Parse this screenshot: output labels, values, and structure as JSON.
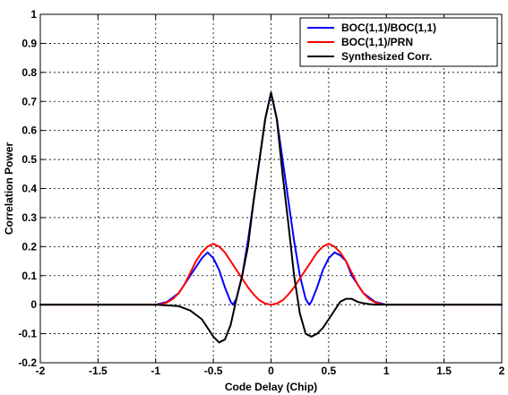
{
  "chart_data": {
    "type": "line",
    "title": "",
    "xlabel": "Code Delay (Chip)",
    "ylabel": "Correlation Power",
    "xlim": [
      -2,
      2
    ],
    "ylim": [
      -0.2,
      1
    ],
    "xticks": [
      -2,
      -1.5,
      -1,
      -0.5,
      0,
      0.5,
      1,
      1.5,
      2
    ],
    "xtick_labels": [
      "-2",
      "-1.5",
      "-1",
      "-0.5",
      "0",
      "0.5",
      "1",
      "1.5",
      "2"
    ],
    "yticks": [
      -0.2,
      -0.1,
      0,
      0.1,
      0.2,
      0.3,
      0.4,
      0.5,
      0.6,
      0.7,
      0.8,
      0.9,
      1
    ],
    "ytick_labels": [
      "-0.2",
      "-0.1",
      "0",
      "0.1",
      "0.2",
      "0.3",
      "0.4",
      "0.5",
      "0.6",
      "0.7",
      "0.8",
      "0.9",
      "1"
    ],
    "grid": true,
    "legend_position": "top-right",
    "series": [
      {
        "name": "BOC(1,1)/BOC(1,1)",
        "color": "#0000ff",
        "x": [
          -2,
          -1,
          -0.9,
          -0.8,
          -0.7,
          -0.6,
          -0.55,
          -0.5,
          -0.45,
          -0.4,
          -0.35,
          -0.33,
          -0.3,
          -0.25,
          -0.2,
          -0.15,
          -0.1,
          -0.05,
          0,
          0.05,
          0.1,
          0.15,
          0.2,
          0.25,
          0.3,
          0.33,
          0.35,
          0.4,
          0.45,
          0.5,
          0.55,
          0.6,
          0.65,
          0.7,
          0.8,
          0.9,
          1,
          2
        ],
        "y": [
          0,
          0,
          0.01,
          0.04,
          0.1,
          0.16,
          0.18,
          0.16,
          0.12,
          0.06,
          0.01,
          0,
          0.02,
          0.1,
          0.22,
          0.36,
          0.5,
          0.64,
          0.73,
          0.64,
          0.5,
          0.36,
          0.22,
          0.1,
          0.02,
          0,
          0.01,
          0.06,
          0.12,
          0.16,
          0.18,
          0.17,
          0.15,
          0.1,
          0.04,
          0.01,
          0,
          0
        ]
      },
      {
        "name": "BOC(1,1)/PRN",
        "color": "#ff0000",
        "x": [
          -2,
          -1,
          -0.95,
          -0.9,
          -0.85,
          -0.8,
          -0.75,
          -0.7,
          -0.65,
          -0.6,
          -0.55,
          -0.5,
          -0.45,
          -0.4,
          -0.35,
          -0.3,
          -0.25,
          -0.2,
          -0.15,
          -0.1,
          -0.05,
          0,
          0.05,
          0.1,
          0.15,
          0.2,
          0.25,
          0.3,
          0.35,
          0.4,
          0.45,
          0.5,
          0.55,
          0.6,
          0.65,
          0.7,
          0.75,
          0.8,
          0.85,
          0.9,
          0.95,
          1,
          2
        ],
        "y": [
          0,
          0,
          0.002,
          0.008,
          0.02,
          0.04,
          0.07,
          0.11,
          0.15,
          0.18,
          0.2,
          0.21,
          0.2,
          0.18,
          0.15,
          0.12,
          0.09,
          0.06,
          0.035,
          0.015,
          0.004,
          0,
          0.004,
          0.015,
          0.035,
          0.06,
          0.09,
          0.12,
          0.15,
          0.18,
          0.2,
          0.21,
          0.2,
          0.18,
          0.15,
          0.11,
          0.07,
          0.04,
          0.02,
          0.008,
          0.002,
          0,
          0
        ]
      },
      {
        "name": "Synthesized Corr.",
        "color": "#000000",
        "x": [
          -2,
          -1,
          -0.8,
          -0.7,
          -0.6,
          -0.55,
          -0.5,
          -0.45,
          -0.4,
          -0.35,
          -0.3,
          -0.25,
          -0.2,
          -0.15,
          -0.1,
          -0.05,
          0,
          0.05,
          0.1,
          0.15,
          0.2,
          0.25,
          0.3,
          0.35,
          0.4,
          0.45,
          0.5,
          0.55,
          0.6,
          0.65,
          0.7,
          0.75,
          0.8,
          0.85,
          0.9,
          1,
          2
        ],
        "y": [
          0,
          0,
          -0.005,
          -0.02,
          -0.05,
          -0.08,
          -0.11,
          -0.13,
          -0.12,
          -0.07,
          0.02,
          0.1,
          0.2,
          0.36,
          0.5,
          0.64,
          0.73,
          0.64,
          0.45,
          0.28,
          0.1,
          -0.03,
          -0.1,
          -0.11,
          -0.1,
          -0.08,
          -0.05,
          -0.02,
          0.01,
          0.02,
          0.02,
          0.01,
          0.005,
          0.002,
          0,
          0,
          0
        ]
      }
    ]
  }
}
